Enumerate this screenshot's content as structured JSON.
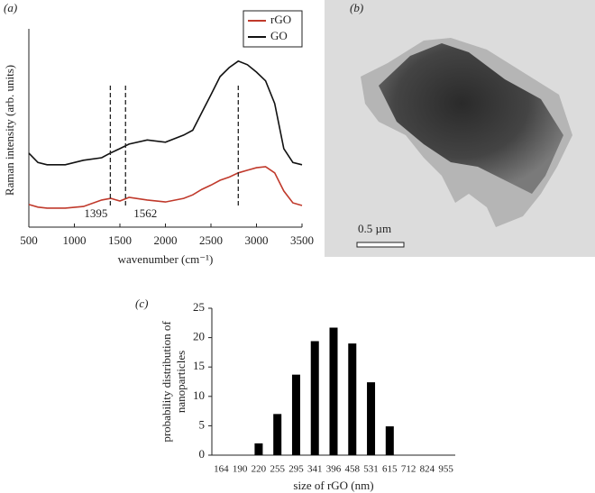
{
  "chart_data": [
    {
      "type": "line",
      "panel_label": "(a)",
      "x_label": "wavenumber (cm⁻¹)",
      "y_label": "Raman intensity (arb. units)",
      "x": [
        500,
        600,
        700,
        900,
        1100,
        1300,
        1400,
        1500,
        1600,
        1800,
        2000,
        2200,
        2300,
        2400,
        2500,
        2600,
        2700,
        2800,
        2900,
        3000,
        3100,
        3200,
        3300,
        3400,
        3500
      ],
      "series": [
        {
          "name": "rGO",
          "color": "#c0392b",
          "values": [
            0.7,
            0.62,
            0.59,
            0.59,
            0.64,
            0.84,
            0.89,
            0.81,
            0.92,
            0.84,
            0.78,
            0.89,
            1.0,
            1.17,
            1.3,
            1.45,
            1.55,
            1.68,
            1.76,
            1.84,
            1.87,
            1.68,
            1.12,
            0.75,
            0.67
          ]
        },
        {
          "name": "GO",
          "color": "#111111",
          "values": [
            2.29,
            2.0,
            1.93,
            1.93,
            2.07,
            2.15,
            2.3,
            2.43,
            2.57,
            2.7,
            2.63,
            2.85,
            3.0,
            3.55,
            4.1,
            4.66,
            4.94,
            5.14,
            5.03,
            4.8,
            4.53,
            3.83,
            2.43,
            2.0,
            1.93
          ]
        }
      ],
      "vlines": [
        {
          "value": 1395,
          "label": "1395"
        },
        {
          "value": 1562,
          "label": "1562"
        },
        {
          "value": 2800
        }
      ],
      "xlim": [
        500,
        3500
      ],
      "xticks": [
        500,
        1000,
        1500,
        2000,
        2500,
        3000,
        3500
      ],
      "ylim": [
        0,
        6
      ],
      "legend": "top-right"
    },
    {
      "type": "bar",
      "panel_label": "(c)",
      "x_label": "size of rGO (nm)",
      "y_label": [
        "probability distribution of",
        "nanoparticles"
      ],
      "categories": [
        "164",
        "190",
        "220",
        "255",
        "295",
        "341",
        "396",
        "458",
        "531",
        "615",
        "712",
        "824",
        "955"
      ],
      "values": [
        0,
        0,
        2,
        7,
        13.7,
        19.4,
        21.7,
        19,
        12.4,
        4.9,
        0,
        0,
        0
      ],
      "color": "#000000",
      "ylim": [
        0,
        25
      ],
      "yticks": [
        0,
        5,
        10,
        15,
        20,
        25
      ]
    }
  ],
  "image_panel": {
    "panel_label": "(b)",
    "scale_label": "0.5 µm"
  }
}
